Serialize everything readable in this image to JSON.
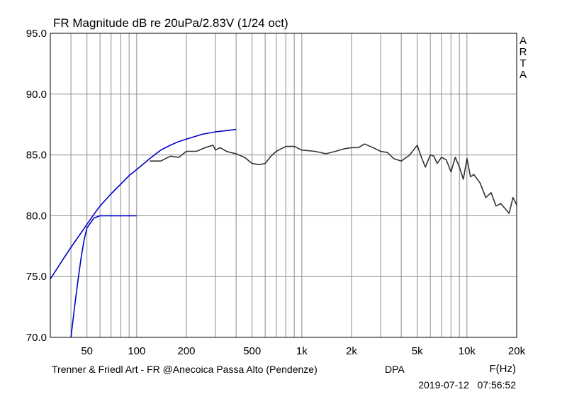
{
  "chart_data": {
    "type": "line",
    "title": "FR Magnitude dB re 20uPa/2.83V (1/24 oct)",
    "xlabel": "F(Hz)",
    "x_scale": "log",
    "xlim": [
      30,
      20000
    ],
    "ylim": [
      70,
      95
    ],
    "grid": true,
    "x_ticks": [
      {
        "value": 50,
        "label": "50"
      },
      {
        "value": 100,
        "label": "100"
      },
      {
        "value": 200,
        "label": "200"
      },
      {
        "value": 500,
        "label": "500"
      },
      {
        "value": 1000,
        "label": "1k"
      },
      {
        "value": 2000,
        "label": "2k"
      },
      {
        "value": 5000,
        "label": "5k"
      },
      {
        "value": 10000,
        "label": "10k"
      },
      {
        "value": 20000,
        "label": "20k"
      }
    ],
    "y_ticks": [
      {
        "value": 70,
        "label": "70.0"
      },
      {
        "value": 75,
        "label": "75.0"
      },
      {
        "value": 80,
        "label": "80.0"
      },
      {
        "value": 85,
        "label": "85.0"
      },
      {
        "value": 90,
        "label": "90.0"
      },
      {
        "value": 95,
        "label": "95.0"
      }
    ],
    "series": [
      {
        "color": "#333333",
        "x": [
          120,
          140,
          160,
          180,
          200,
          230,
          260,
          290,
          300,
          320,
          350,
          370,
          400,
          450,
          500,
          550,
          600,
          650,
          700,
          800,
          900,
          1000,
          1200,
          1400,
          1600,
          1800,
          2000,
          2200,
          2400,
          2700,
          3000,
          3300,
          3600,
          4000,
          4500,
          5000,
          5300,
          5600,
          6000,
          6300,
          6600,
          7000,
          7500,
          8000,
          8500,
          9000,
          9500,
          10000,
          10500,
          11000,
          12000,
          13000,
          14000,
          15000,
          16000,
          17000,
          18000,
          19000,
          20000
        ],
        "y": [
          84.5,
          84.5,
          84.9,
          84.8,
          85.3,
          85.3,
          85.6,
          85.8,
          85.4,
          85.6,
          85.3,
          85.2,
          85.1,
          84.8,
          84.3,
          84.2,
          84.3,
          84.9,
          85.3,
          85.7,
          85.7,
          85.4,
          85.3,
          85.1,
          85.3,
          85.5,
          85.6,
          85.6,
          85.9,
          85.6,
          85.3,
          85.2,
          84.7,
          84.5,
          85.0,
          85.8,
          84.8,
          84.0,
          85.0,
          84.9,
          84.3,
          84.8,
          84.6,
          83.6,
          84.8,
          84.0,
          83.0,
          84.7,
          83.2,
          83.4,
          82.7,
          81.5,
          81.9,
          80.8,
          81.0,
          80.6,
          80.2,
          81.5,
          80.9
        ]
      },
      {
        "color": "#0000c8",
        "x": [
          30,
          35,
          40,
          45,
          50,
          55,
          60,
          70,
          80,
          90,
          100,
          120,
          140,
          160,
          180,
          200,
          250,
          300,
          350,
          400
        ],
        "y": [
          74.8,
          76.2,
          77.4,
          78.4,
          79.3,
          80.1,
          80.8,
          81.8,
          82.6,
          83.3,
          83.8,
          84.7,
          85.4,
          85.8,
          86.1,
          86.3,
          86.7,
          86.9,
          87.0,
          87.1
        ]
      },
      {
        "color": "#0000c8",
        "x": [
          40,
          42,
          44,
          46,
          48,
          50,
          55,
          60,
          70,
          80,
          100
        ],
        "y": [
          70.0,
          72.4,
          74.6,
          76.5,
          78.0,
          79.0,
          79.8,
          80.0,
          80.0,
          80.0,
          80.0
        ]
      }
    ],
    "footer_left": "Trenner & Friedl Art - FR @Anecoica Passa Alto (Pendenze)",
    "footer_mid": "DPA",
    "timestamp": "2019-07-12   07:56:52",
    "side_label": [
      "A",
      "R",
      "T",
      "A"
    ]
  }
}
